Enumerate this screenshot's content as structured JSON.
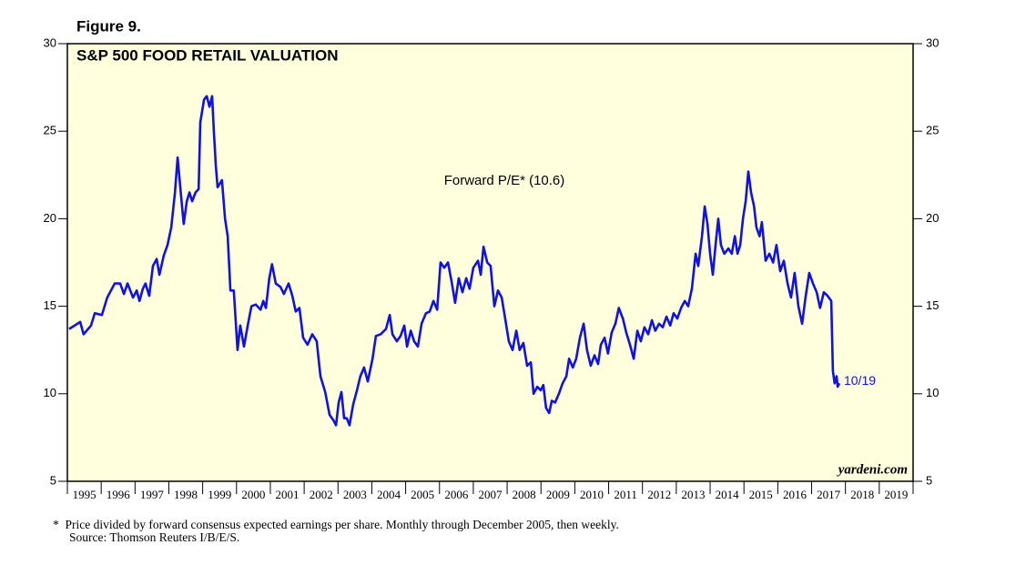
{
  "figure_label": "Figure 9.",
  "chart_data": {
    "type": "line",
    "title": "S&P 500 FOOD RETAIL VALUATION",
    "annotation": "Forward P/E* (10.6)",
    "end_label": "10/19",
    "watermark": "yardeni.com",
    "footnotes": [
      "*  Price divided by forward consensus expected earnings per share. Monthly through December 2005, then weekly.",
      "Source: Thomson Reuters I/B/E/S."
    ],
    "xlim": [
      1995,
      2020
    ],
    "xticks": [
      1995,
      1996,
      1997,
      1998,
      1999,
      2000,
      2001,
      2002,
      2003,
      2004,
      2005,
      2006,
      2007,
      2008,
      2009,
      2010,
      2011,
      2012,
      2013,
      2014,
      2015,
      2016,
      2017,
      2018,
      2019
    ],
    "ylim": [
      5,
      30
    ],
    "yticks": [
      5,
      10,
      15,
      20,
      25,
      30
    ],
    "background": "#ffffdd",
    "x": [
      1995.05,
      1995.38,
      1995.48,
      1995.7,
      1995.81,
      1996.02,
      1996.18,
      1996.4,
      1996.56,
      1996.67,
      1996.78,
      1996.94,
      1997.05,
      1997.13,
      1997.23,
      1997.31,
      1997.42,
      1997.53,
      1997.64,
      1997.72,
      1997.85,
      1997.96,
      1998.07,
      1998.18,
      1998.26,
      1998.36,
      1998.44,
      1998.53,
      1998.61,
      1998.69,
      1998.79,
      1998.88,
      1998.93,
      1999.04,
      1999.12,
      1999.2,
      1999.28,
      1999.33,
      1999.39,
      1999.44,
      1999.57,
      1999.66,
      1999.74,
      1999.82,
      1999.92,
      2000.03,
      2000.11,
      2000.22,
      2000.33,
      2000.44,
      2000.57,
      2000.71,
      2000.79,
      2000.87,
      2000.97,
      2001.05,
      2001.16,
      2001.3,
      2001.4,
      2001.54,
      2001.65,
      2001.75,
      2001.86,
      2001.97,
      2002.1,
      2002.24,
      2002.37,
      2002.48,
      2002.62,
      2002.75,
      2002.86,
      2002.94,
      2003.02,
      2003.1,
      2003.18,
      2003.26,
      2003.34,
      2003.45,
      2003.56,
      2003.66,
      2003.77,
      2003.88,
      2004.02,
      2004.12,
      2004.26,
      2004.42,
      2004.53,
      2004.61,
      2004.74,
      2004.85,
      2004.96,
      2005.04,
      2005.15,
      2005.25,
      2005.36,
      2005.47,
      2005.6,
      2005.71,
      2005.82,
      2005.93,
      2006.03,
      2006.14,
      2006.25,
      2006.36,
      2006.46,
      2006.57,
      2006.68,
      2006.79,
      2006.89,
      2007.0,
      2007.14,
      2007.22,
      2007.3,
      2007.41,
      2007.51,
      2007.62,
      2007.73,
      2007.84,
      2007.94,
      2008.05,
      2008.16,
      2008.27,
      2008.37,
      2008.48,
      2008.59,
      2008.7,
      2008.78,
      2008.89,
      2008.99,
      2009.07,
      2009.15,
      2009.24,
      2009.32,
      2009.42,
      2009.53,
      2009.64,
      2009.75,
      2009.83,
      2009.94,
      2010.04,
      2010.15,
      2010.26,
      2010.36,
      2010.47,
      2010.58,
      2010.69,
      2010.77,
      2010.88,
      2010.98,
      2011.09,
      2011.2,
      2011.3,
      2011.42,
      2011.52,
      2011.63,
      2011.74,
      2011.85,
      2011.95,
      2012.06,
      2012.17,
      2012.28,
      2012.38,
      2012.49,
      2012.6,
      2012.71,
      2012.82,
      2012.92,
      2013.03,
      2013.14,
      2013.25,
      2013.35,
      2013.46,
      2013.57,
      2013.65,
      2013.76,
      2013.84,
      2013.92,
      2014.0,
      2014.08,
      2014.16,
      2014.24,
      2014.32,
      2014.42,
      2014.54,
      2014.64,
      2014.73,
      2014.81,
      2014.89,
      2014.97,
      2015.05,
      2015.13,
      2015.21,
      2015.3,
      2015.37,
      2015.46,
      2015.53,
      2015.64,
      2015.75,
      2015.86,
      2015.96,
      2016.07,
      2016.18,
      2016.29,
      2016.39,
      2016.5,
      2016.61,
      2016.72,
      2016.82,
      2016.93,
      2017.04,
      2017.15,
      2017.25,
      2017.36,
      2017.47,
      2017.58,
      2017.63,
      2017.68,
      2017.74,
      2017.77,
      2017.82
    ],
    "series": [
      {
        "name": "Forward P/E",
        "color": "#1010e8",
        "values": [
          13.7,
          14.1,
          13.4,
          13.9,
          14.6,
          14.5,
          15.5,
          16.3,
          16.3,
          15.7,
          16.3,
          15.5,
          15.9,
          15.3,
          16.0,
          16.3,
          15.6,
          17.3,
          17.7,
          16.8,
          17.9,
          18.5,
          19.5,
          21.5,
          23.5,
          21.3,
          19.7,
          21.0,
          21.5,
          21.0,
          21.5,
          21.7,
          25.5,
          26.8,
          27.0,
          26.4,
          27.0,
          25.0,
          23.0,
          21.8,
          22.2,
          20.0,
          19.0,
          15.9,
          15.9,
          12.5,
          13.9,
          12.7,
          13.9,
          15.0,
          15.1,
          14.8,
          15.3,
          14.9,
          16.6,
          17.4,
          16.3,
          16.1,
          15.7,
          16.3,
          15.6,
          14.7,
          14.9,
          13.2,
          12.8,
          13.4,
          13.0,
          11.0,
          10.1,
          8.8,
          8.5,
          8.2,
          9.5,
          10.1,
          8.6,
          8.6,
          8.2,
          9.4,
          10.2,
          11.0,
          11.5,
          10.7,
          12.0,
          13.3,
          13.4,
          13.7,
          14.5,
          13.4,
          13.0,
          13.3,
          13.9,
          12.7,
          13.6,
          13.0,
          12.7,
          14.0,
          14.6,
          14.7,
          15.3,
          14.8,
          17.5,
          17.2,
          17.5,
          16.4,
          15.2,
          16.6,
          15.8,
          16.6,
          16.0,
          17.2,
          17.6,
          16.8,
          18.4,
          17.5,
          17.3,
          15.0,
          15.9,
          15.5,
          14.3,
          13.0,
          12.5,
          13.6,
          12.5,
          12.9,
          11.6,
          11.8,
          10.0,
          10.4,
          10.2,
          10.5,
          9.2,
          8.9,
          9.6,
          9.5,
          10.0,
          10.6,
          11.0,
          12.0,
          11.5,
          12.0,
          13.2,
          14.0,
          12.5,
          11.6,
          12.2,
          11.7,
          12.8,
          13.2,
          12.3,
          13.5,
          14.0,
          14.9,
          14.3,
          13.5,
          12.8,
          12.0,
          13.6,
          13.0,
          13.8,
          13.4,
          14.2,
          13.6,
          14.0,
          13.8,
          14.4,
          13.9,
          14.6,
          14.3,
          14.9,
          15.3,
          15.0,
          16.0,
          18.0,
          17.3,
          19.0,
          20.7,
          19.7,
          18.0,
          16.8,
          18.5,
          20.0,
          18.5,
          18.0,
          18.3,
          18.0,
          19.0,
          18.0,
          18.5,
          20.0,
          21.0,
          22.7,
          21.5,
          20.7,
          19.5,
          19.0,
          19.8,
          17.6,
          18.0,
          17.5,
          18.5,
          17.0,
          17.6,
          16.3,
          15.5,
          16.9,
          15.0,
          14.0,
          15.5,
          16.9,
          16.3,
          15.8,
          14.9,
          15.8,
          15.6,
          15.3,
          11.3,
          10.6,
          11.0,
          10.4,
          10.6
        ]
      }
    ]
  }
}
